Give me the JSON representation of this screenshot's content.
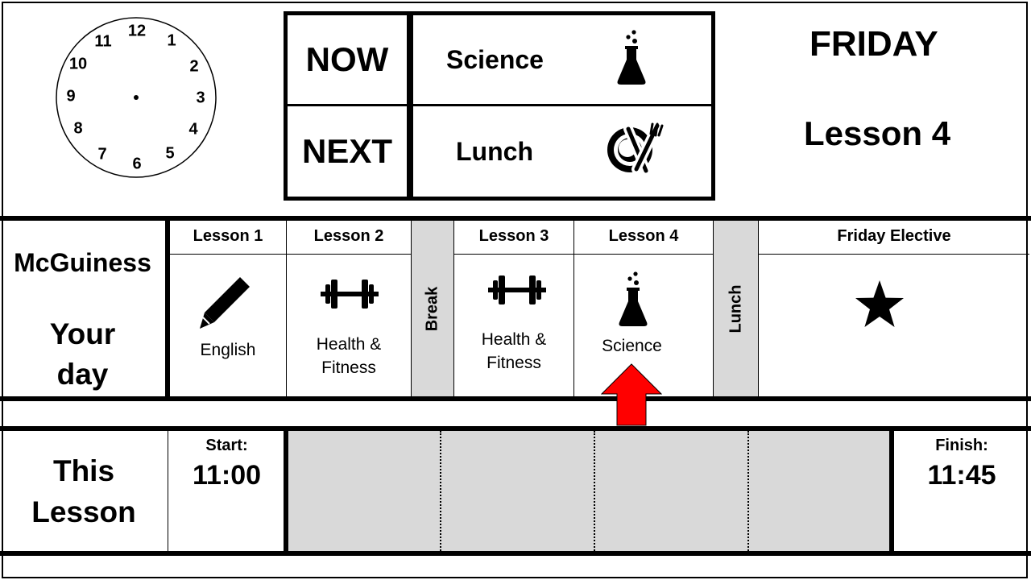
{
  "clock": {
    "numbers": [
      "12",
      "1",
      "2",
      "3",
      "4",
      "5",
      "6",
      "7",
      "8",
      "9",
      "10",
      "11"
    ]
  },
  "now_next": {
    "now_label": "NOW",
    "now_subject": "Science",
    "now_icon": "flask-icon",
    "next_label": "NEXT",
    "next_subject": "Lunch",
    "next_icon": "plate-cutlery-icon"
  },
  "day": {
    "weekday": "FRIDAY",
    "current_lesson": "Lesson 4"
  },
  "schedule": {
    "student_name": "McGuiness",
    "caption_line1": "Your",
    "caption_line2": "day",
    "lessons": [
      {
        "header": "Lesson 1",
        "subject": "English",
        "icon": "pencil-icon"
      },
      {
        "header": "Lesson 2",
        "subject_line1": "Health &",
        "subject_line2": "Fitness",
        "icon": "dumbbell-icon"
      },
      {
        "break_label": "Break"
      },
      {
        "header": "Lesson 3",
        "subject_line1": "Health &",
        "subject_line2": "Fitness",
        "icon": "dumbbell-icon"
      },
      {
        "header": "Lesson 4",
        "subject": "Science",
        "icon": "flask-icon"
      },
      {
        "break_label": "Lunch"
      },
      {
        "header": "Friday Elective",
        "icon": "star-icon"
      }
    ],
    "current_marker": "up-arrow-icon",
    "marker_color": "#ff0000"
  },
  "this_lesson": {
    "title_line1": "This",
    "title_line2": "Lesson",
    "start_label": "Start:",
    "start_time": "11:00",
    "finish_label": "Finish:",
    "finish_time": "11:45",
    "progress_fraction": 0,
    "track_color": "#d9d9d9"
  }
}
